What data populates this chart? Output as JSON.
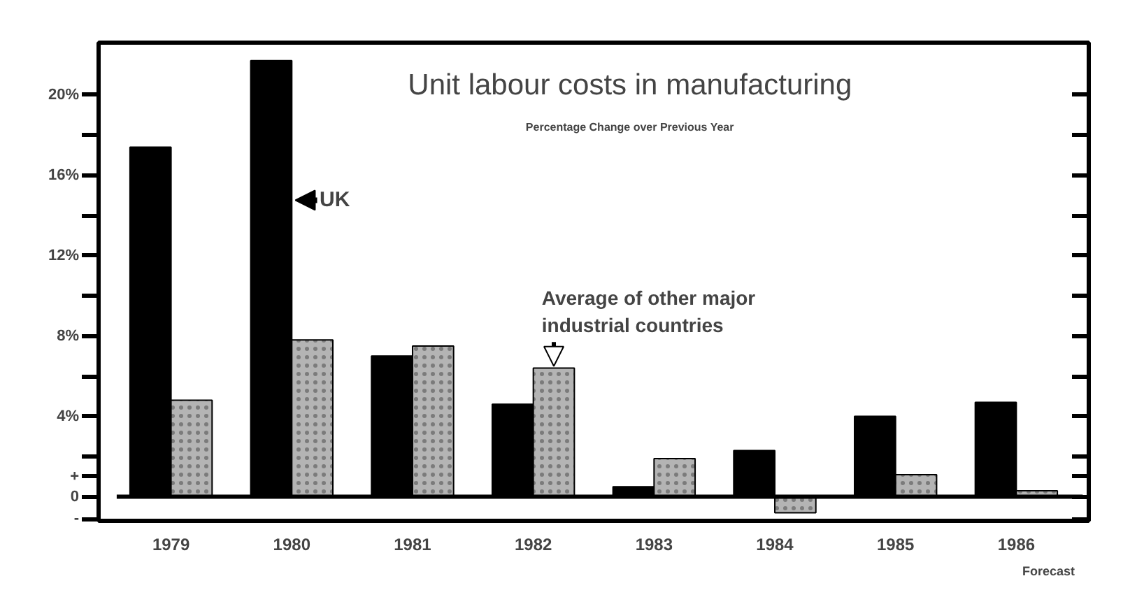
{
  "chart_data": {
    "type": "bar",
    "title": "Unit labour costs in manufacturing",
    "subtitle": "Percentage Change over Previous Year",
    "categories": [
      "1979",
      "1980",
      "1981",
      "1982",
      "1983",
      "1984",
      "1985",
      "1986"
    ],
    "series": [
      {
        "name": "UK",
        "color": "#000000",
        "values": [
          17.4,
          21.7,
          7.0,
          4.6,
          0.5,
          2.3,
          4.0,
          4.7
        ]
      },
      {
        "name": "Average of other major industrial countries",
        "color": "#b4b4b4",
        "values": [
          4.8,
          7.8,
          7.5,
          6.4,
          1.9,
          -0.8,
          1.1,
          0.3
        ]
      }
    ],
    "ylim": [
      -1.2,
      22.6
    ],
    "yticks": [
      {
        "value": -1.1,
        "label": "-"
      },
      {
        "value": 0,
        "label": "0"
      },
      {
        "value": 1,
        "label": "+"
      },
      {
        "value": 2,
        "label": null
      },
      {
        "value": 4,
        "label": "4%"
      },
      {
        "value": 6,
        "label": null
      },
      {
        "value": 8,
        "label": "8%"
      },
      {
        "value": 10,
        "label": null
      },
      {
        "value": 12,
        "label": "12%"
      },
      {
        "value": 14,
        "label": null
      },
      {
        "value": 16,
        "label": "16%"
      },
      {
        "value": 18,
        "label": null
      },
      {
        "value": 20,
        "label": "20%"
      }
    ],
    "annotations": [
      "Forecast"
    ],
    "grid": false
  }
}
